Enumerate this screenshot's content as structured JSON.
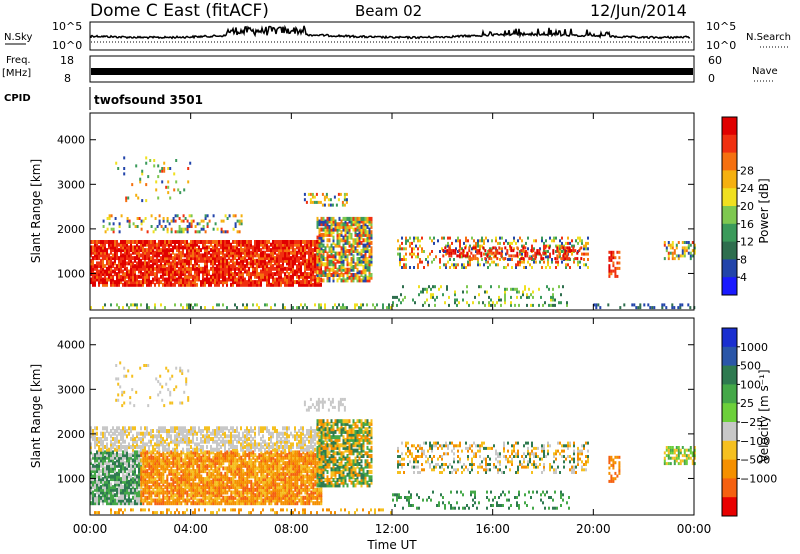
{
  "header": {
    "station": "Dome C East (fitACF)",
    "beam": "Beam 02",
    "date": "12/Jun/2014"
  },
  "side_labels": {
    "nsky": "N.Sky",
    "nsearch": "N.Search",
    "freq": "Freq.",
    "freq_unit": "[MHz]",
    "nave": "Nave",
    "cpid": "CPID",
    "cpid_value": "twofsound 3501"
  },
  "strip_ticks": {
    "nsky_top": "10^5",
    "nsky_bottom": "10^0",
    "nsearch_top": "10^5",
    "nsearch_bottom": "10^0",
    "freq_top": "18",
    "freq_bottom": "8",
    "nave_top": "60",
    "nave_bottom": "0"
  },
  "chart_data": [
    {
      "type": "heatmap",
      "panel": "power",
      "ylabel": "Slant Range [km]",
      "yticks": [
        1000,
        2000,
        3000,
        4000
      ],
      "ylim": [
        180,
        4600
      ],
      "xlim_hours": [
        0,
        24
      ],
      "colorbar": {
        "label": "Power [dB]",
        "ticks": [
          "4",
          "8",
          "12",
          "16",
          "20",
          "24",
          "28"
        ],
        "colors": [
          "#1a1aff",
          "#2244aa",
          "#2e6e4e",
          "#3a9a5a",
          "#7ec850",
          "#f0e020",
          "#f5b010",
          "#f57010",
          "#f03010",
          "#e00000"
        ]
      }
    },
    {
      "type": "heatmap",
      "panel": "velocity",
      "ylabel": "Slant Range [km]",
      "yticks": [
        1000,
        2000,
        3000,
        4000
      ],
      "ylim": [
        180,
        4600
      ],
      "xlim_hours": [
        0,
        24
      ],
      "xticks": [
        "00:00",
        "04:00",
        "08:00",
        "12:00",
        "16:00",
        "20:00",
        "00:00"
      ],
      "xlabel": "Time UT",
      "colorbar": {
        "label": "Velocity [m s⁻¹]",
        "ticks": [
          "1000",
          "500",
          "100",
          "25",
          "−25",
          "−100",
          "−500",
          "−1000"
        ],
        "colors": [
          "#1a2fd0",
          "#2a56a8",
          "#2e7a50",
          "#44a848",
          "#6cd03a",
          "#c8c8c8",
          "#f5c020",
          "#f59000",
          "#f56010",
          "#e80000"
        ]
      }
    }
  ]
}
